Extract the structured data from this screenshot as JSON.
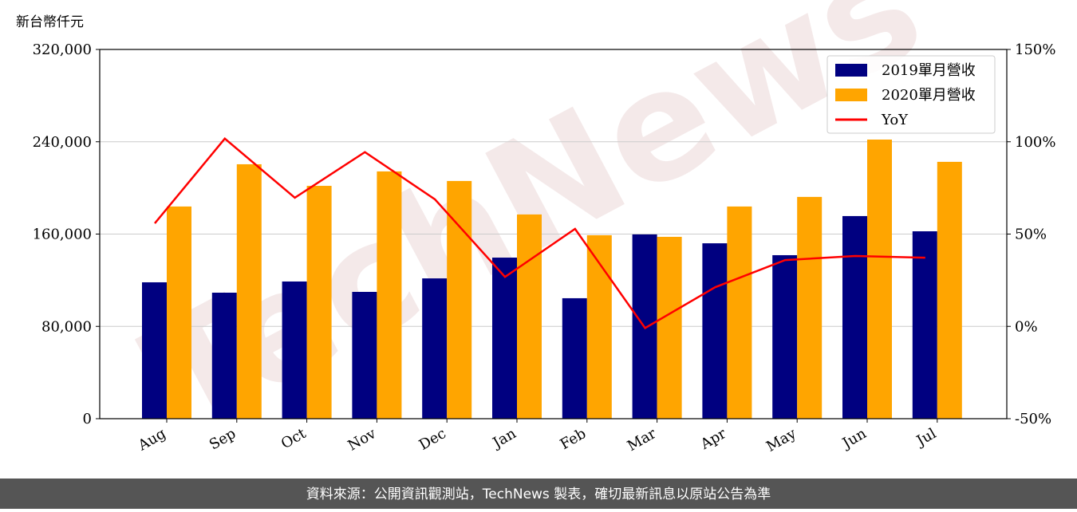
{
  "chart_data": {
    "type": "bar-line",
    "y_label": "新台幣仟元",
    "watermark": "TechNews",
    "source": "資料來源：公開資訊觀測站，TechNews 製表，確切最新訊息以原站公告為準",
    "categories": [
      "Aug",
      "Sep",
      "Oct",
      "Nov",
      "Dec",
      "Jan",
      "Feb",
      "Mar",
      "Apr",
      "May",
      "Jun",
      "Jul"
    ],
    "series": [
      {
        "name": "2019單月營收",
        "color": "#000080",
        "type": "bar",
        "values": [
          118200,
          109200,
          118900,
          109900,
          121600,
          139600,
          104400,
          159700,
          152000,
          141700,
          175600,
          162400
        ]
      },
      {
        "name": "2020單月營收",
        "color": "#ffa500",
        "type": "bar",
        "values": [
          183900,
          220500,
          201800,
          214300,
          206000,
          177000,
          159000,
          157600,
          183900,
          192200,
          241900,
          222600
        ]
      },
      {
        "name": "YoY",
        "color": "#ff0000",
        "type": "line",
        "axis": "y2",
        "values": [
          55.8,
          101.7,
          69.7,
          94.4,
          68.8,
          26.8,
          52.8,
          -0.9,
          21.2,
          35.9,
          38.1,
          37.2
        ]
      }
    ],
    "ylim": [
      0,
      320000
    ],
    "yticks": [
      0,
      {
        "value": 80000,
        "label": "80,000"
      },
      {
        "value": 160000,
        "label": "160,000"
      },
      {
        "value": 240000,
        "label": "240,000"
      },
      {
        "value": 320000,
        "label": "320,000"
      }
    ],
    "y2lim": [
      -50,
      150
    ],
    "y2ticks": [
      {
        "value": -50,
        "label": "-50%"
      },
      {
        "value": 0,
        "label": "0%"
      },
      {
        "value": 50,
        "label": "50%"
      },
      {
        "value": 100,
        "label": "100%"
      },
      {
        "value": 150,
        "label": "150%"
      }
    ],
    "grid": true,
    "legend": "upper right"
  }
}
